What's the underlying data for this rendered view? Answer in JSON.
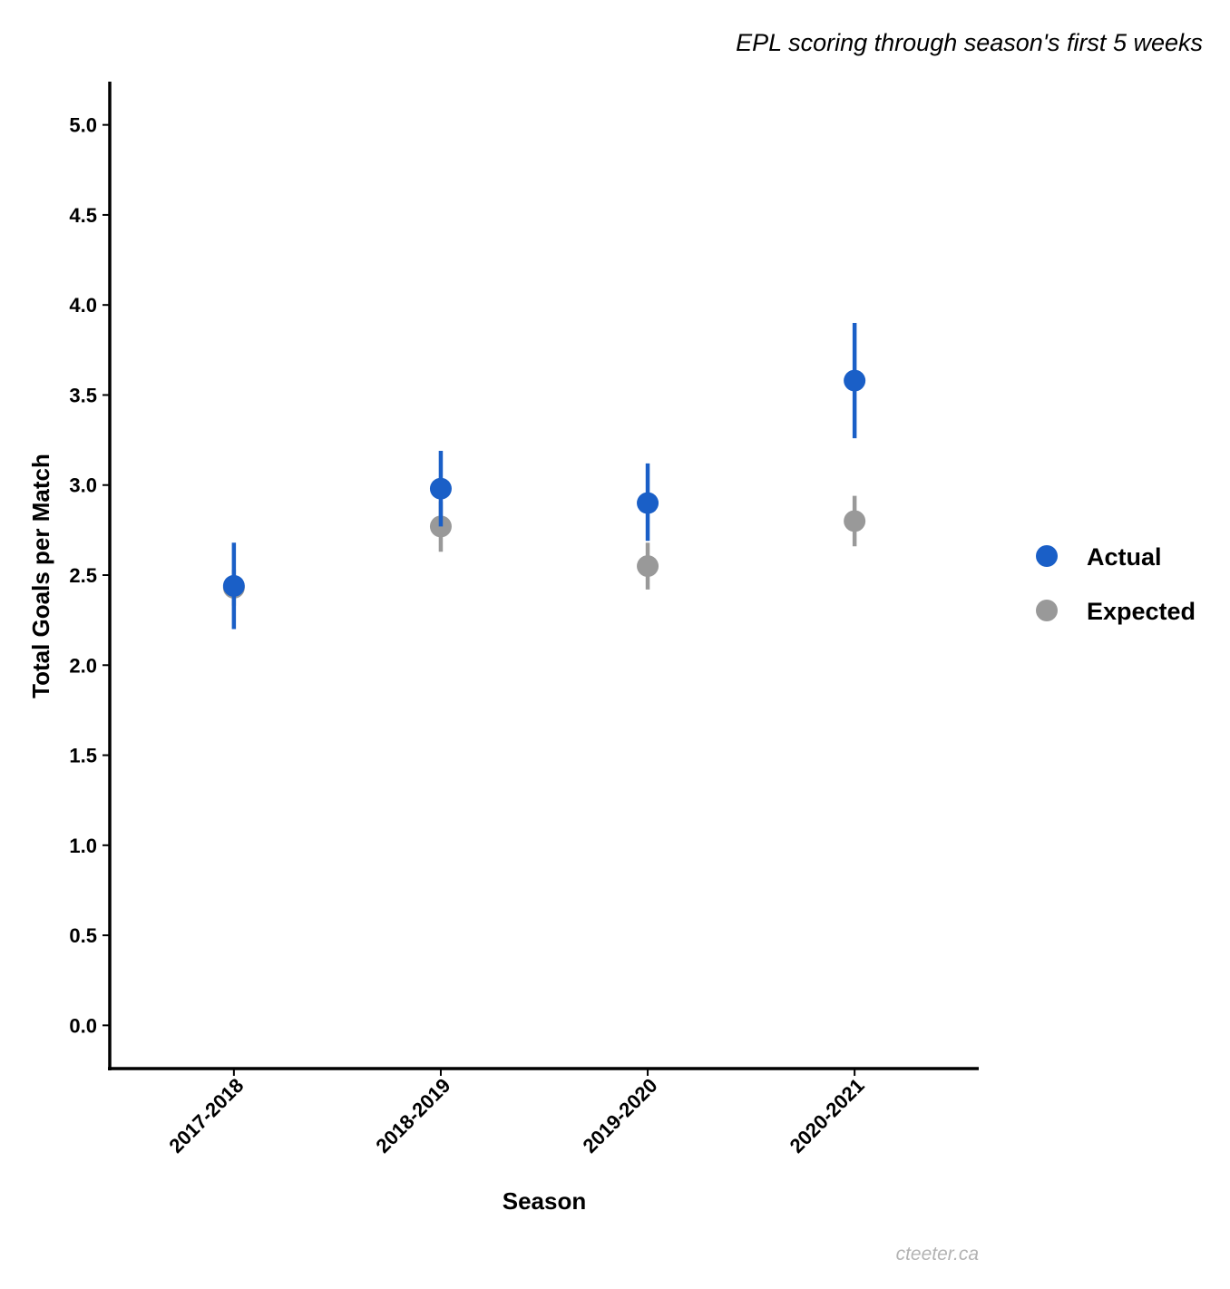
{
  "chart_data": {
    "type": "scatter",
    "subtitle": "EPL scoring through season's first 5 weeks",
    "xlabel": "Season",
    "ylabel": "Total Goals per Match",
    "categories": [
      "2017-2018",
      "2018-2019",
      "2019-2020",
      "2020-2021"
    ],
    "y_ticks": [
      "0.0",
      "0.5",
      "1.0",
      "1.5",
      "2.0",
      "2.5",
      "3.0",
      "3.5",
      "4.0",
      "4.5",
      "5.0"
    ],
    "ylim": [
      -0.24,
      5.24
    ],
    "grid": false,
    "legend_position": "right",
    "series": [
      {
        "name": "Actual",
        "color": "#1a5fc7",
        "values": [
          2.44,
          2.98,
          2.9,
          3.58
        ],
        "lower": [
          2.2,
          2.77,
          2.69,
          3.26
        ],
        "upper": [
          2.68,
          3.19,
          3.12,
          3.9
        ]
      },
      {
        "name": "Expected",
        "color": "#999999",
        "values": [
          2.43,
          2.77,
          2.55,
          2.8
        ],
        "lower": [
          2.33,
          2.63,
          2.42,
          2.66
        ],
        "upper": [
          2.53,
          2.91,
          2.68,
          2.94
        ]
      }
    ],
    "caption": "cteeter.ca"
  }
}
